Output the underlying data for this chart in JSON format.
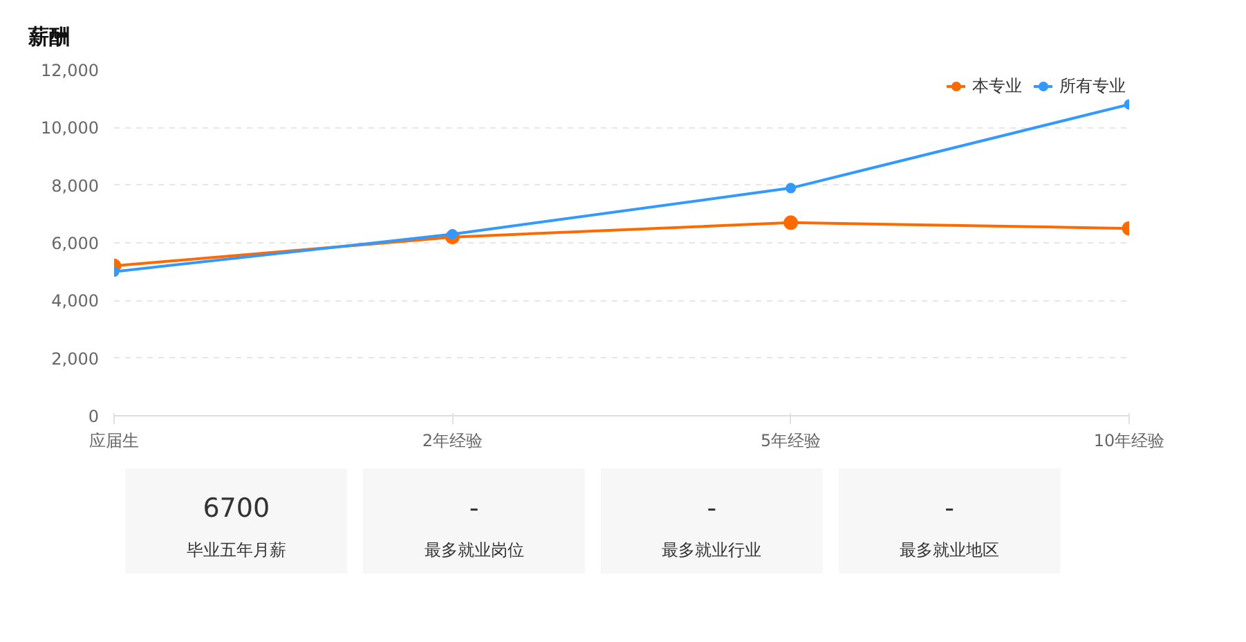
{
  "chart_data": [
    {
      "type": "line",
      "title": "薪酬",
      "categories": [
        "应届生",
        "2年经验",
        "5年经验",
        "10年经验"
      ],
      "series": [
        {
          "name": "本专业",
          "color": "#ff6a00",
          "values": [
            5200,
            6200,
            6700,
            6500
          ]
        },
        {
          "name": "所有专业",
          "color": "#3399ff",
          "values": [
            5000,
            6300,
            7900,
            10800
          ]
        }
      ],
      "ylim": [
        0,
        12000
      ],
      "yticks": [
        {
          "value": 0,
          "label": "0"
        },
        {
          "value": 2000,
          "label": "2,000"
        },
        {
          "value": 4000,
          "label": "4,000"
        },
        {
          "value": 6000,
          "label": "6,000"
        },
        {
          "value": 8000,
          "label": "8,000"
        },
        {
          "value": 10000,
          "label": "10,000"
        },
        {
          "value": 12000,
          "label": "12,000"
        }
      ],
      "grid": "y",
      "legend": "top right",
      "marker": "circle",
      "line_style": "solid"
    },
    {
      "type": "other",
      "annotations": [
        "6700",
        "毕业五年月薪",
        "-",
        "最多就业岗位",
        "-",
        "最多就业行业",
        "-",
        "最多就业地区"
      ]
    }
  ]
}
